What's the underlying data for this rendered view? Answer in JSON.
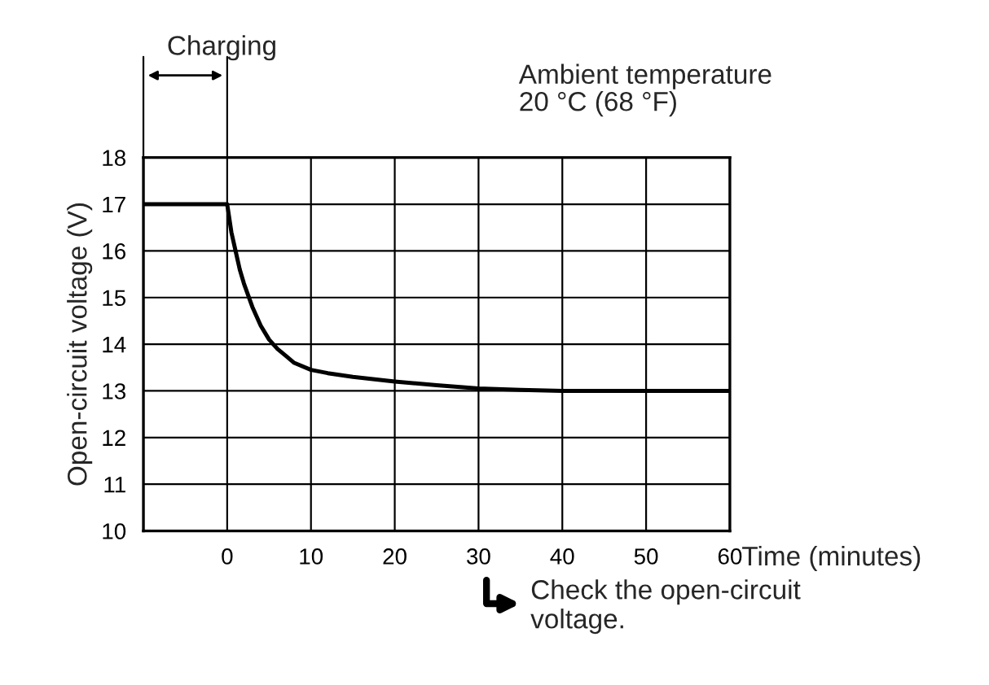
{
  "chart_data": {
    "type": "line",
    "xlabel": "Time (minutes)",
    "ylabel": "Open-circuit voltage (V)",
    "annotations": [
      "Charging",
      "Ambient temperature\n20 °C (68 °F)",
      "Check the open-circuit\nvoltage."
    ],
    "series": [
      {
        "color": "#000000",
        "x": [
          -10,
          0,
          0.5,
          1,
          1.5,
          2,
          3,
          4,
          5,
          6,
          7,
          8,
          10,
          12,
          15,
          20,
          25,
          30,
          35,
          40,
          50,
          60
        ],
        "values": [
          17,
          17,
          16.4,
          16.0,
          15.6,
          15.3,
          14.8,
          14.4,
          14.1,
          13.9,
          13.75,
          13.6,
          13.45,
          13.38,
          13.3,
          13.2,
          13.12,
          13.05,
          13.02,
          13.0,
          13.0,
          13.0
        ]
      }
    ],
    "xlim": [
      -10,
      60
    ],
    "xticks": [
      0,
      10,
      20,
      30,
      40,
      50,
      60
    ],
    "ylim": [
      10,
      18
    ],
    "yticks": [
      10,
      11,
      12,
      13,
      14,
      15,
      16,
      17,
      18
    ],
    "grid": true,
    "marker": "none",
    "line_style": "solid"
  }
}
